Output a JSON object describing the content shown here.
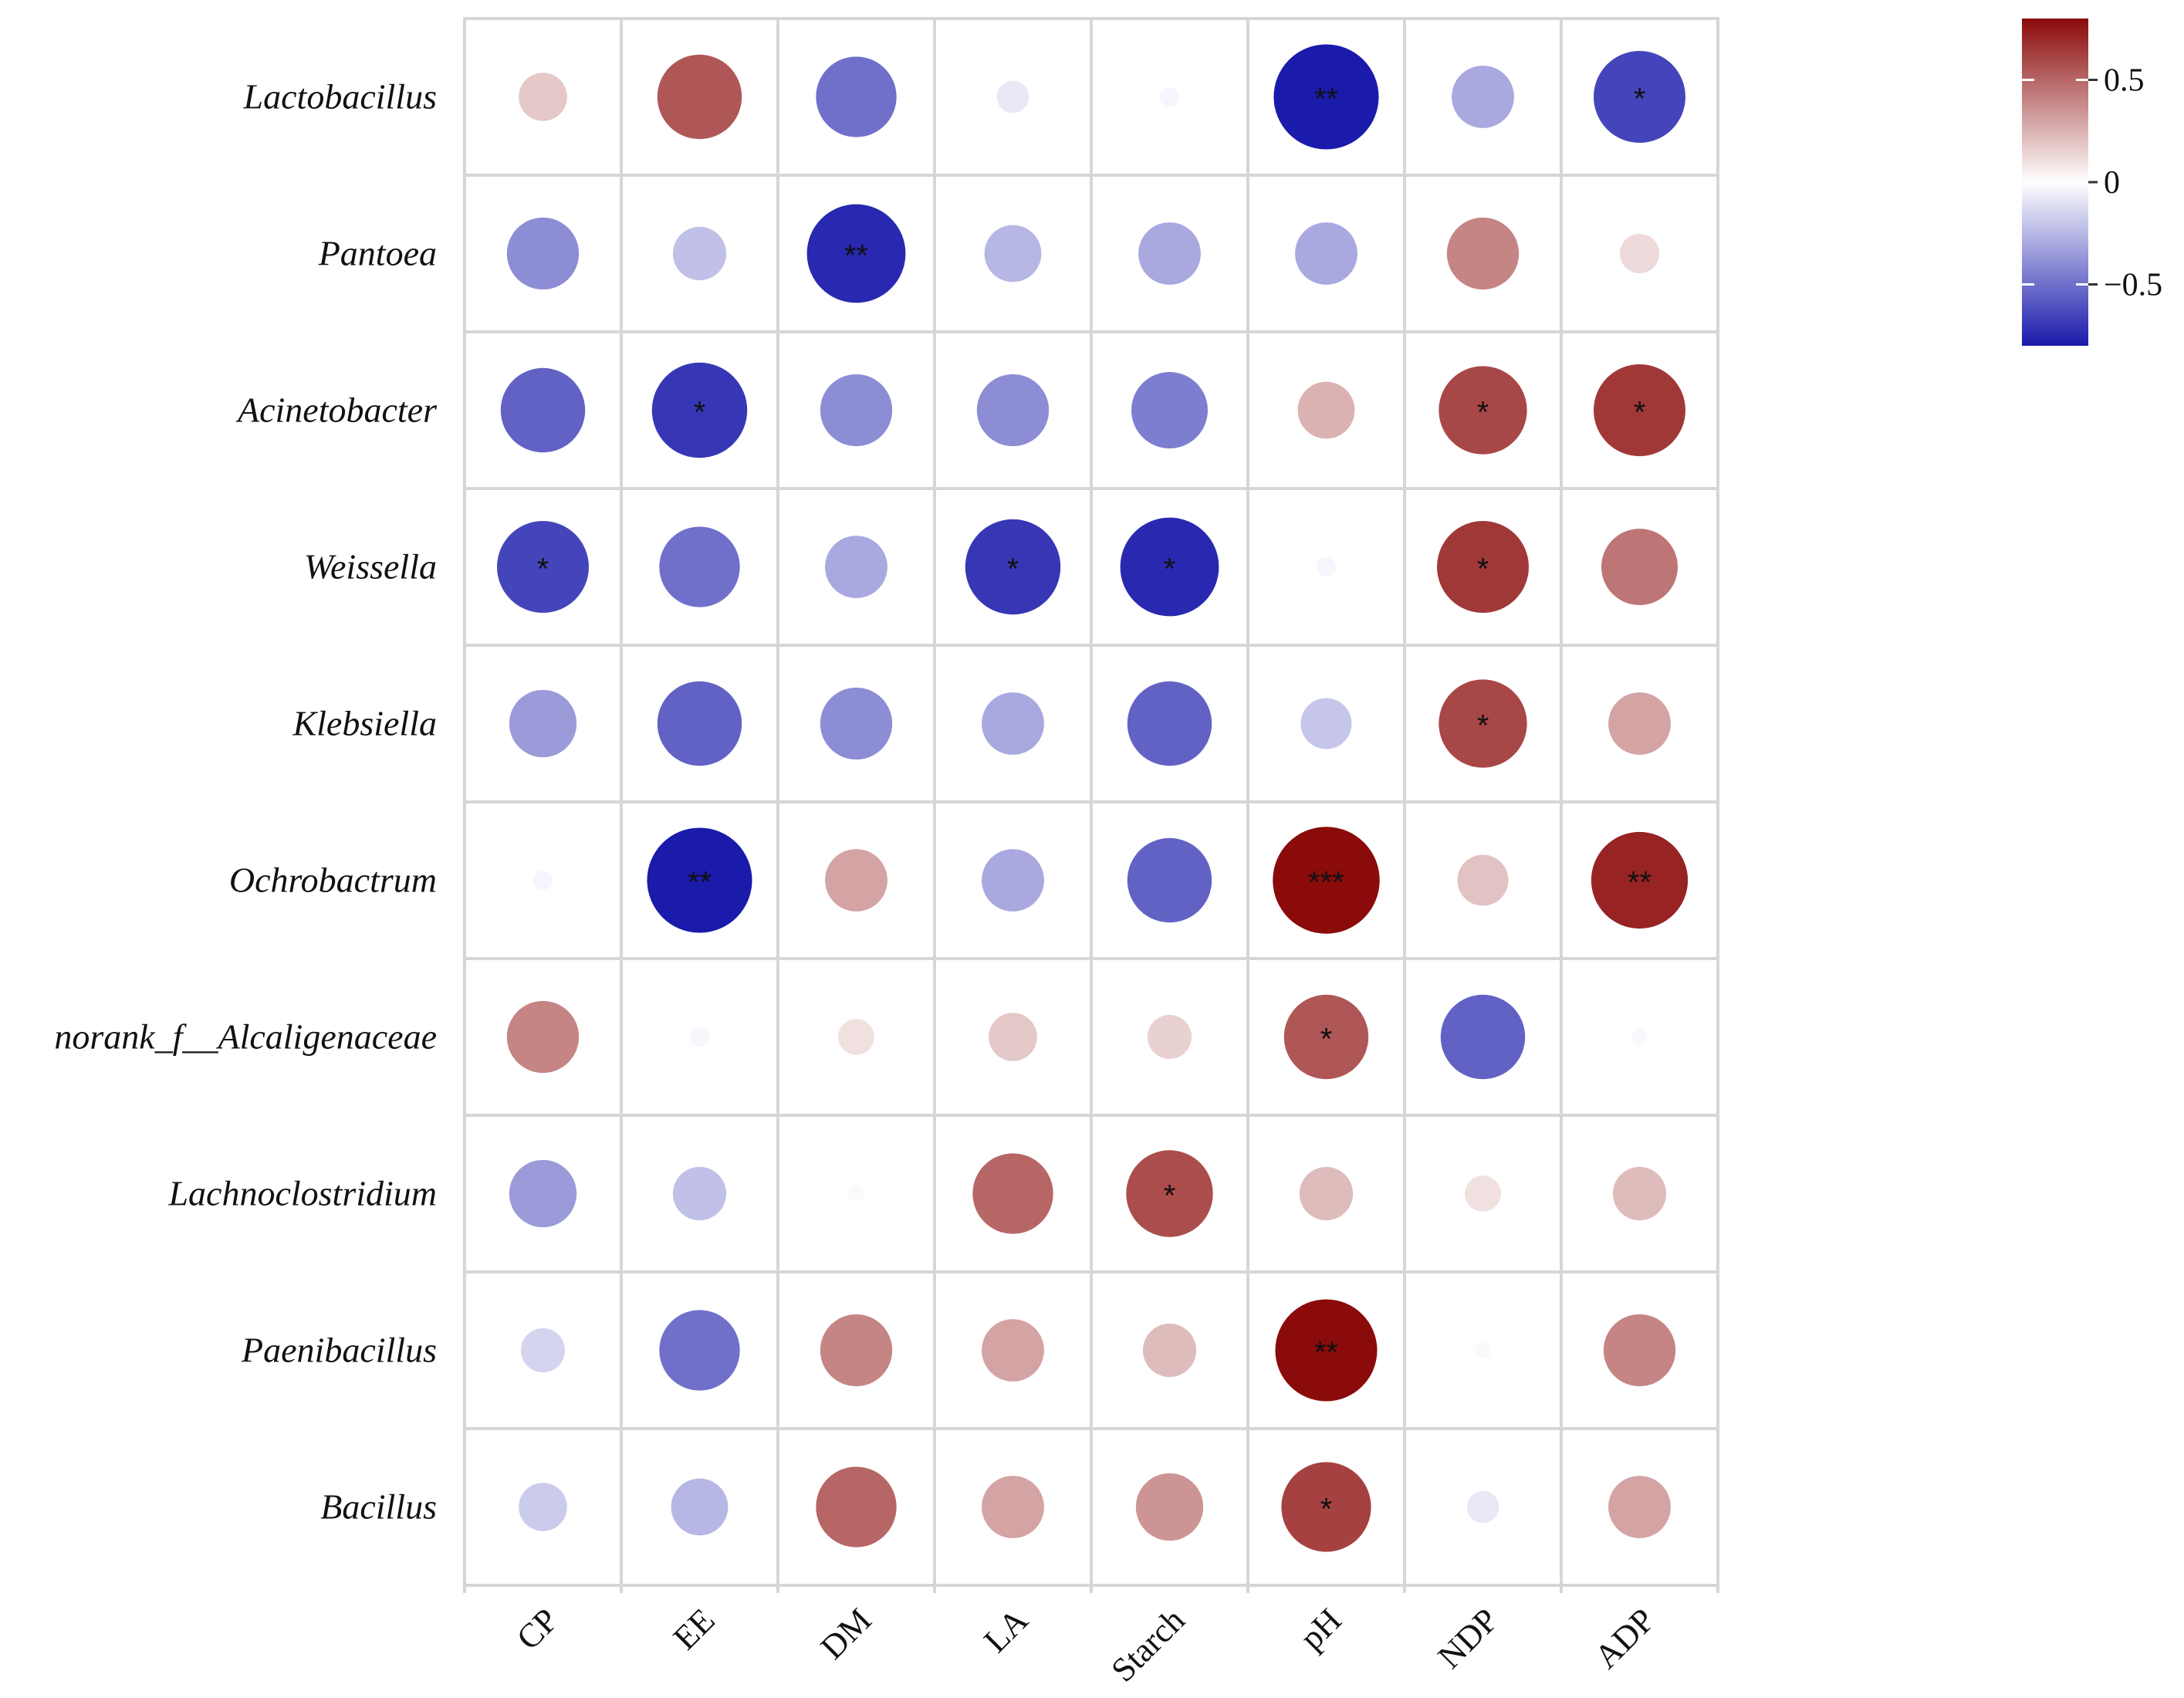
{
  "chart_data": {
    "type": "heatmap",
    "subtype": "correlation-circle-matrix",
    "title": "",
    "xlabel": "",
    "ylabel": "",
    "rows": [
      "Lactobacillus",
      "Pantoea",
      "Acinetobacter",
      "Weissella",
      "Klebsiella",
      "Ochrobactrum",
      "norank_f__Alcaligenaceae",
      "Lachnoclostridium",
      "Paenibacillus",
      "Bacillus"
    ],
    "columns": [
      "CP",
      "EE",
      "DM",
      "LA",
      "Starch",
      "pH",
      "NDP",
      "ADP"
    ],
    "values": [
      [
        0.18,
        0.55,
        -0.5,
        -0.08,
        -0.03,
        -0.85,
        -0.3,
        -0.65
      ],
      [
        -0.4,
        -0.22,
        -0.75,
        -0.25,
        -0.3,
        -0.3,
        0.4,
        0.12
      ],
      [
        -0.55,
        -0.7,
        -0.4,
        -0.4,
        -0.45,
        0.25,
        0.6,
        0.65
      ],
      [
        -0.65,
        -0.5,
        -0.3,
        -0.7,
        -0.75,
        -0.03,
        0.65,
        0.45
      ],
      [
        -0.35,
        -0.55,
        -0.4,
        -0.3,
        -0.55,
        -0.2,
        0.6,
        0.3
      ],
      [
        -0.03,
        -0.85,
        0.3,
        -0.3,
        -0.55,
        0.88,
        0.2,
        0.72
      ],
      [
        0.4,
        -0.03,
        0.1,
        0.18,
        0.15,
        0.55,
        -0.55,
        -0.02
      ],
      [
        -0.35,
        -0.22,
        0.02,
        0.5,
        0.58,
        0.22,
        0.1,
        0.22
      ],
      [
        -0.15,
        -0.5,
        0.4,
        0.3,
        0.22,
        0.8,
        0.02,
        0.4
      ],
      [
        -0.18,
        -0.25,
        0.5,
        0.3,
        0.35,
        0.62,
        -0.08,
        0.3
      ]
    ],
    "significance": [
      [
        "",
        "",
        "",
        "",
        "",
        "**",
        "",
        "*"
      ],
      [
        "",
        "",
        "**",
        "",
        "",
        "",
        "",
        ""
      ],
      [
        "",
        "*",
        "",
        "",
        "",
        "",
        "*",
        "*"
      ],
      [
        "*",
        "",
        "",
        "*",
        "*",
        "",
        "*",
        ""
      ],
      [
        "",
        "",
        "",
        "",
        "",
        "",
        "*",
        ""
      ],
      [
        "",
        "**",
        "",
        "",
        "",
        "***",
        "",
        "**"
      ],
      [
        "",
        "",
        "",
        "",
        "",
        "*",
        "",
        ""
      ],
      [
        "",
        "",
        "",
        "",
        "*",
        "",
        "",
        ""
      ],
      [
        "",
        "",
        "",
        "",
        "",
        "**",
        "",
        ""
      ],
      [
        "",
        "",
        "",
        "",
        "",
        "*",
        "",
        ""
      ]
    ],
    "colorbar": {
      "range": [
        -0.8,
        0.8
      ],
      "ticks": [
        0.5,
        0,
        -0.5
      ],
      "tick_labels": [
        "0.5",
        "0",
        "−0.5"
      ],
      "low_color": "#1a1aab",
      "mid_color": "#ffffff",
      "high_color": "#8b0a0a"
    },
    "grid": true,
    "legend": "top-right"
  }
}
